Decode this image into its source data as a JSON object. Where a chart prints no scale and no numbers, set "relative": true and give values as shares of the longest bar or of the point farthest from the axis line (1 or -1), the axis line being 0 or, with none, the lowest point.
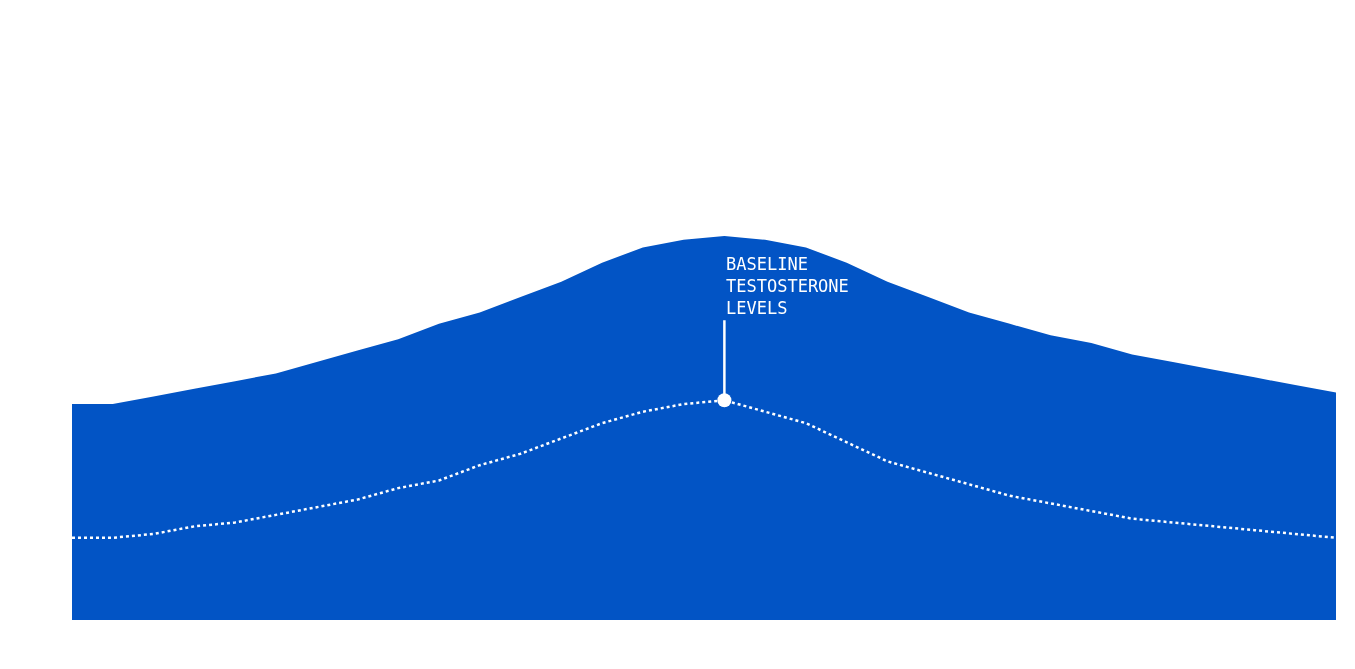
{
  "chart_data": {
    "type": "area",
    "relative": true,
    "categories": [
      null,
      null,
      null,
      null,
      null,
      null,
      null,
      null,
      null,
      null,
      null,
      null,
      null,
      null,
      null,
      null,
      null,
      null,
      null,
      null,
      null,
      null,
      null,
      null,
      null,
      null,
      null,
      null,
      null,
      null,
      null,
      null
    ],
    "series": [
      {
        "color": "#0254c5",
        "values": [
          0.56,
          0.56,
          0.58,
          0.6,
          0.62,
          0.64,
          0.67,
          0.7,
          0.73,
          0.77,
          0.8,
          0.84,
          0.88,
          0.93,
          0.97,
          0.99,
          1,
          0.99,
          0.97,
          0.93,
          0.88,
          0.84,
          0.8,
          0.77,
          0.74,
          0.72,
          0.69,
          0.67,
          0.65,
          0.63,
          0.61,
          0.59
        ]
      },
      {
        "type": "line",
        "color": "#ffffff",
        "line_style": "dotted",
        "values": [
          0.21,
          0.21,
          0.22,
          0.24,
          0.25,
          0.27,
          0.29,
          0.31,
          0.34,
          0.36,
          0.4,
          0.43,
          0.47,
          0.51,
          0.54,
          0.56,
          0.57,
          0.54,
          0.51,
          0.46,
          0.41,
          0.38,
          0.35,
          0.32,
          0.3,
          0.28,
          0.26,
          0.25,
          0.24,
          0.23,
          0.22,
          0.21
        ]
      }
    ],
    "annotations": [
      "BASELINE\nTESTOSTERONE\nLEVELS"
    ]
  }
}
